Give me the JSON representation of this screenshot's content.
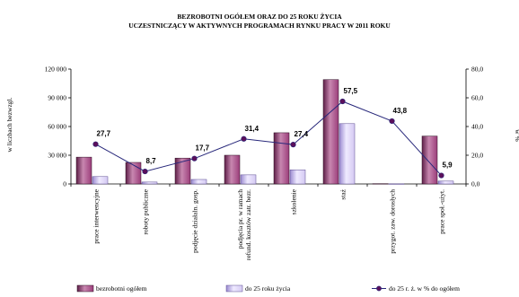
{
  "chart_data": {
    "type": "bar",
    "title_lines": [
      "BEZROBOTNI OGÓŁEM ORAZ DO 25 ROKU ŻYCIA",
      "UCZESTNICZĄCY W AKTYWNYCH PROGRAMACH RYNKU PRACY W 2011 ROKU"
    ],
    "ylabel": "w liczbach bezwzgl.",
    "y2label": "w %",
    "ylim": [
      0,
      120000
    ],
    "y2lim": [
      0,
      80
    ],
    "yticks": [
      "0",
      "30 000",
      "60 000",
      "90 000",
      "120 000"
    ],
    "y2ticks": [
      "0,0",
      "20,0",
      "40,0",
      "60,0",
      "80,0"
    ],
    "categories": [
      [
        "prace interwencyjne"
      ],
      [
        "roboty publiczne"
      ],
      [
        "podjęcie działaln. gosp."
      ],
      [
        "podjęcia pr. w ramach",
        "refund. kosztów zatr. bezr."
      ],
      [
        "szkolenie"
      ],
      [
        "staż"
      ],
      [
        "przygot. zaw. dorosłych"
      ],
      [
        "prace społ.-użyt."
      ]
    ],
    "series": [
      {
        "name": "bezrobotni ogółem",
        "kind": "bar",
        "axis": "left",
        "values": [
          28000,
          22500,
          27000,
          30000,
          53500,
          109000,
          300,
          50000
        ]
      },
      {
        "name": "do 25 roku życia",
        "kind": "bar",
        "axis": "left",
        "values": [
          7700,
          2000,
          4700,
          9500,
          14700,
          63000,
          130,
          3000
        ]
      },
      {
        "name": "do 25 r. ż. w % do ogółem",
        "kind": "line",
        "axis": "right",
        "values": [
          27.7,
          8.7,
          17.7,
          31.4,
          27.4,
          57.5,
          43.8,
          5.9
        ],
        "labels": [
          "27,7",
          "8,7",
          "17,7",
          "31,4",
          "27,4",
          "57,5",
          "43,8",
          "5,9"
        ]
      }
    ],
    "colors": {
      "bar1": "#9b3d7a",
      "bar1_light": "#c887b0",
      "bar1_dark": "#5e1f48",
      "bar2": "#d4c9f2",
      "bar2_light": "#efeaff",
      "bar2_dark": "#9a8ad0",
      "line": "#27277a",
      "marker": "#5b0f5b"
    },
    "grid": false,
    "legend_position": "bottom"
  }
}
